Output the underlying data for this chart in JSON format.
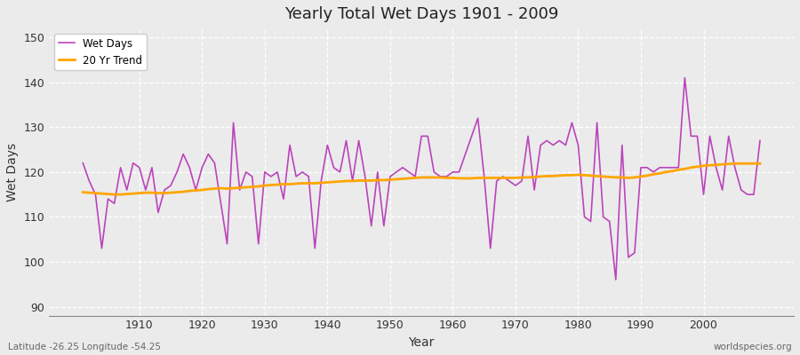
{
  "title": "Yearly Total Wet Days 1901 - 2009",
  "xlabel": "Year",
  "ylabel": "Wet Days",
  "subtitle": "Latitude -26.25 Longitude -54.25",
  "watermark": "worldspecies.org",
  "wet_days_line_color": "#bb44bb",
  "trend_line_color": "#ffa500",
  "background_color": "#ebebeb",
  "plot_bg_color": "#ebebeb",
  "ylim": [
    88,
    152
  ],
  "yticks": [
    90,
    100,
    110,
    120,
    130,
    140,
    150
  ],
  "xticks": [
    1910,
    1920,
    1930,
    1940,
    1950,
    1960,
    1970,
    1980,
    1990,
    2000
  ],
  "years": [
    1901,
    1902,
    1903,
    1904,
    1905,
    1906,
    1907,
    1908,
    1909,
    1910,
    1911,
    1912,
    1913,
    1914,
    1915,
    1916,
    1917,
    1918,
    1919,
    1920,
    1921,
    1922,
    1923,
    1924,
    1925,
    1926,
    1927,
    1928,
    1929,
    1930,
    1931,
    1932,
    1933,
    1934,
    1935,
    1936,
    1937,
    1938,
    1939,
    1940,
    1941,
    1942,
    1943,
    1944,
    1945,
    1946,
    1947,
    1948,
    1949,
    1950,
    1951,
    1952,
    1953,
    1954,
    1955,
    1956,
    1957,
    1958,
    1959,
    1960,
    1961,
    1962,
    1963,
    1964,
    1965,
    1966,
    1967,
    1968,
    1969,
    1970,
    1971,
    1972,
    1973,
    1974,
    1975,
    1976,
    1977,
    1978,
    1979,
    1980,
    1981,
    1982,
    1983,
    1984,
    1985,
    1986,
    1987,
    1988,
    1989,
    1990,
    1991,
    1992,
    1993,
    1994,
    1995,
    1996,
    1997,
    1998,
    1999,
    2000,
    2001,
    2002,
    2003,
    2004,
    2005,
    2006,
    2007,
    2008,
    2009
  ],
  "wet_days": [
    122,
    118,
    115,
    103,
    114,
    113,
    121,
    116,
    122,
    121,
    116,
    121,
    111,
    116,
    117,
    120,
    124,
    121,
    116,
    121,
    124,
    122,
    113,
    104,
    131,
    116,
    120,
    119,
    104,
    120,
    119,
    120,
    114,
    126,
    119,
    120,
    119,
    103,
    118,
    126,
    121,
    120,
    127,
    118,
    127,
    119,
    108,
    120,
    108,
    119,
    120,
    121,
    120,
    119,
    128,
    128,
    120,
    119,
    119,
    120,
    120,
    124,
    128,
    132,
    119,
    103,
    118,
    119,
    118,
    117,
    118,
    128,
    116,
    126,
    127,
    126,
    127,
    126,
    131,
    126,
    110,
    109,
    131,
    110,
    109,
    96,
    126,
    101,
    102,
    121,
    121,
    120,
    121,
    121,
    121,
    121,
    141,
    128,
    128,
    115,
    128,
    121,
    116,
    128,
    121,
    116,
    115,
    115,
    127
  ],
  "trend": [
    115.5,
    115.4,
    115.3,
    115.2,
    115.1,
    115.0,
    115.0,
    115.1,
    115.2,
    115.3,
    115.4,
    115.4,
    115.3,
    115.3,
    115.4,
    115.5,
    115.6,
    115.8,
    115.9,
    116.0,
    116.2,
    116.3,
    116.4,
    116.3,
    116.4,
    116.5,
    116.6,
    116.7,
    116.8,
    117.0,
    117.1,
    117.2,
    117.3,
    117.3,
    117.4,
    117.5,
    117.5,
    117.5,
    117.6,
    117.7,
    117.8,
    117.9,
    118.0,
    118.0,
    118.1,
    118.1,
    118.1,
    118.2,
    118.2,
    118.3,
    118.4,
    118.5,
    118.6,
    118.7,
    118.8,
    118.8,
    118.8,
    118.8,
    118.7,
    118.7,
    118.6,
    118.6,
    118.6,
    118.7,
    118.7,
    118.7,
    118.7,
    118.7,
    118.7,
    118.7,
    118.8,
    118.8,
    118.9,
    119.0,
    119.1,
    119.1,
    119.2,
    119.3,
    119.3,
    119.4,
    119.3,
    119.2,
    119.1,
    119.0,
    118.9,
    118.8,
    118.8,
    118.7,
    118.8,
    119.0,
    119.2,
    119.5,
    119.7,
    120.0,
    120.2,
    120.5,
    120.7,
    121.0,
    121.2,
    121.4,
    121.5,
    121.6,
    121.7,
    121.8,
    121.9,
    121.9,
    121.9,
    121.9,
    121.9
  ]
}
